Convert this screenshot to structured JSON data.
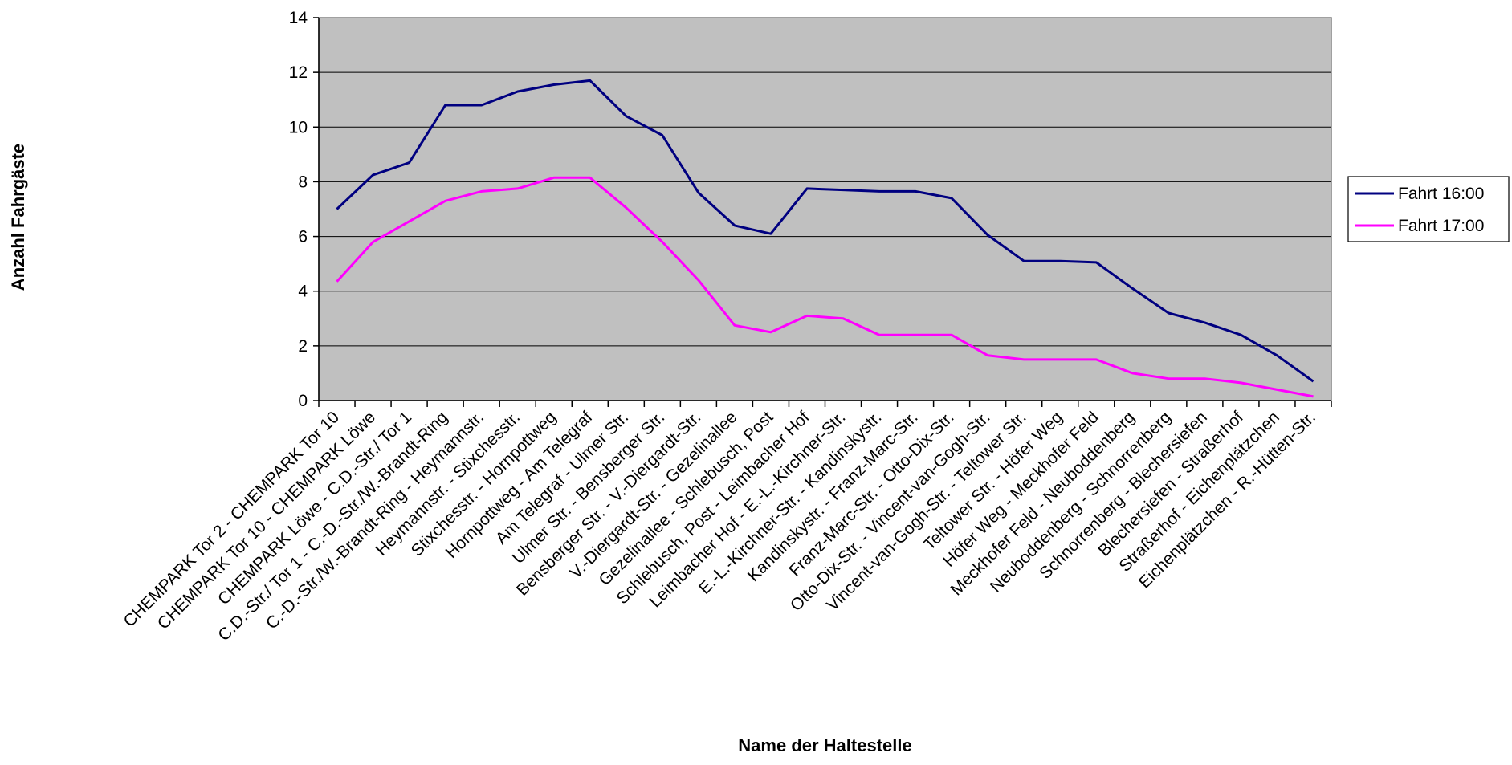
{
  "chart_data": {
    "type": "line",
    "title": "",
    "xlabel": "Name der Haltestelle",
    "ylabel": "Anzahl Fahrgäste",
    "ylim": [
      0,
      14
    ],
    "yticks": [
      0,
      2,
      4,
      6,
      8,
      10,
      12,
      14
    ],
    "grid": true,
    "legend_position": "right",
    "plot_background": "#c0c0c0",
    "categories": [
      "CHEMPARK Tor 2 - CHEMPARK Tor 10",
      "CHEMPARK Tor 10 - CHEMPARK Löwe",
      "CHEMPARK Löwe - C.D.-Str./ Tor 1",
      "C.D.-Str./ Tor 1 - C.-D.-Str./W.-Brandt-Ring",
      "C.-D.-Str./W.-Brandt-Ring - Heymannstr.",
      "Heymannstr. - Stixchesstr.",
      "Stixchesstr. - Hornpottweg",
      "Hornpottweg - Am Telegraf",
      "Am Telegraf - Ulmer Str.",
      "Ulmer Str. - Bensberger Str.",
      "Bensberger Str. - V.-Diergardt-Str.",
      "V.-Diergardt-Str. - Gezelinallee",
      "Gezelinallee - Schlebusch, Post",
      "Schlebusch, Post - Leimbacher Hof",
      "Leimbacher Hof - E.-L.-Kirchner-Str.",
      "E.-L.-Kirchner-Str. - Kandinskystr.",
      "Kandinskystr. - Franz-Marc-Str.",
      "Franz-Marc-Str. - Otto-Dix-Str.",
      "Otto-Dix-Str. - Vincent-van-Gogh-Str.",
      "Vincent-van-Gogh-Str. - Teltower Str.",
      "Teltower Str. - Höfer Weg",
      "Höfer Weg - Meckhofer Feld",
      "Meckhofer Feld - Neuboddenberg",
      "Neuboddenberg - Schnorrenberg",
      "Schnorrenberg - Blechersiefen",
      "Blechersiefen - Straßerhof",
      "Straßerhof - Eichenplätzchen",
      "Eichenplätzchen - R.-Hütten-Str."
    ],
    "series": [
      {
        "name": "Fahrt 16:00",
        "color": "#000080",
        "values": [
          7.0,
          8.25,
          8.7,
          10.8,
          10.8,
          11.3,
          11.55,
          11.7,
          10.4,
          9.7,
          7.6,
          6.4,
          6.1,
          7.75,
          7.7,
          7.65,
          7.65,
          7.4,
          6.05,
          5.1,
          5.1,
          5.05,
          4.1,
          3.2,
          2.85,
          2.4,
          1.65,
          0.7
        ]
      },
      {
        "name": "Fahrt 17:00",
        "color": "#ff00ff",
        "values": [
          4.35,
          5.8,
          6.55,
          7.3,
          7.65,
          7.75,
          8.15,
          8.15,
          7.05,
          5.8,
          4.4,
          2.75,
          2.5,
          3.1,
          3.0,
          2.4,
          2.4,
          2.4,
          1.65,
          1.5,
          1.5,
          1.5,
          1.0,
          0.8,
          0.8,
          0.65,
          0.4,
          0.15
        ]
      }
    ]
  }
}
